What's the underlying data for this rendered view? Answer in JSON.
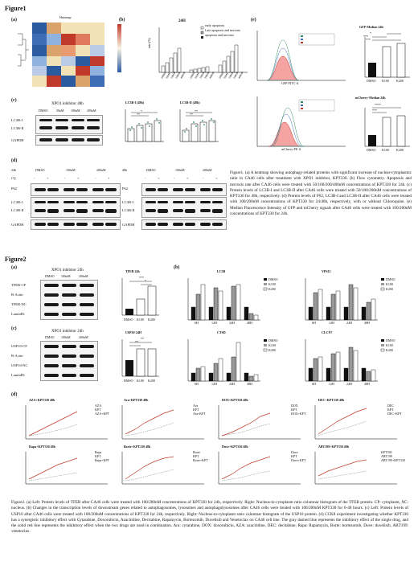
{
  "figure1": {
    "title": "Figure1",
    "panel_a": {
      "letter": "(a)",
      "heatmap_title": "Heatmap"
    },
    "panel_b": {
      "letter": "(b)",
      "chart_title": "24H",
      "ylabel": "rate (%)",
      "legend": [
        "early apoptosis",
        "Late apoptosis and necrosis",
        "apoptosis and necrosis"
      ]
    },
    "panel_c": {
      "letter": "(c)",
      "blot_title": "XPO1 inhibitor 48h",
      "lanes": [
        "DMSO",
        "50nM",
        "100nM",
        "200nM"
      ],
      "rows": [
        "LC3B-I",
        "LC3B-II",
        "GAPDH"
      ],
      "bar1_title": "LC3B-I (48h)",
      "bar2_title": "LC3B-II (48h)",
      "ylabel": "relative expression",
      "sig": [
        "*",
        "**",
        "**",
        "**"
      ]
    },
    "panel_d": {
      "letter": "(d)",
      "left": {
        "time": "24h",
        "groups": [
          "DMSO",
          "100nM",
          "200nM"
        ],
        "cq_label": "CQ",
        "cq": [
          "-",
          "+",
          "-",
          "+",
          "-",
          "+"
        ],
        "rows": [
          "P62",
          "LC3B-I",
          "LC3B-II",
          "GAPDH"
        ]
      },
      "right": {
        "time": "48h",
        "groups": [
          "DMSO",
          "100nM",
          "200nM"
        ],
        "cq": [
          "-",
          "+",
          "-",
          "+",
          "-",
          "+"
        ],
        "rows": [
          "P62",
          "LC3B-I",
          "LC3B-II",
          "GAPDH"
        ]
      }
    },
    "panel_e": {
      "letter": "(e)",
      "gfp_title": "GFP-Median 24h",
      "gfp_xlabel": "GFP-FITC-A",
      "mcherry_title": "mCherry-Median 24h",
      "mcherry_xlabel": "mCherry-PE-A",
      "ylabel": "Median Fluorescence Intensity",
      "groups": [
        "DMSO",
        "K100",
        "K200"
      ],
      "sig_gfp": [
        "***",
        "***",
        "*"
      ],
      "sig_mch": [
        "****",
        "***"
      ]
    },
    "caption": "Figure1. (a) A heatmap showing autophagy-related proteins with significant increase of nuclear-cytoplasmic ratio in CA46 cells after treatment with XPO1 inhibitor, KPT330. (b) Flow cytometry. Apoptosis and necrosis rate after CA46 cells were treated with 50/100/200/400nM concentrations of KPT330 for 24h. (c) Protein levels of LC3B-I and LC3B-II after CA46 cells were treated with 50/100/200nM concentrations of KPT330 for 48h, respectively. (d) Protein levels of P62, LC3B-I and LC3B-II after CA46 cells were treated with 100/200nM concentrations of KPT330 for 24/48h, respectively, with or without Chloroquine. (e) Median Fluorescence Intensity of GFP and mCherry signals after CA46 cells were treated with 100/200nM concentrations of KPT330 for 24h."
  },
  "figure2": {
    "title": "Figure2",
    "panel_a": {
      "letter": "(a)",
      "blot_title": "XPO1 inhibitor 24h",
      "lanes": [
        "DMSO",
        "100nM",
        "200nM"
      ],
      "rows": [
        "TFEB-CP",
        "B-Actin",
        "TFEB-NC",
        "LaminB1"
      ],
      "chart_title": "TFEB 24h",
      "ylabel": "relative expression (TFEB-NC/TFEB-CP)",
      "groups": [
        "DMSO",
        "K100",
        "K200"
      ],
      "sig": [
        "***",
        "*"
      ]
    },
    "panel_c": {
      "letter": "(c)",
      "blot_title": "XPO1 inhibitor 24h",
      "lanes": [
        "DMSO",
        "100nM",
        "200nM"
      ],
      "rows": [
        "USP10-CP",
        "B-Actin",
        "USP10-NC",
        "LaminB1"
      ],
      "chart_title": "USP10-24H",
      "ylabel": "relative expression",
      "groups": [
        "DMSO",
        "K100",
        "K200"
      ],
      "sig": [
        "**",
        "**"
      ]
    },
    "panel_b": {
      "letter": "(b)",
      "charts": [
        {
          "title": "LC3B",
          "legend": [
            "DMSO",
            "K100",
            "K200"
          ]
        },
        {
          "title": "VPS11",
          "legend": [
            "DMSO",
            "K100",
            "K200"
          ]
        },
        {
          "title": "CTSD",
          "legend": [
            "DMSO",
            "K100",
            "K200"
          ]
        },
        {
          "title": "CLCN7",
          "legend": [
            "DMSO",
            "K100",
            "K200"
          ]
        }
      ],
      "times": [
        "6H",
        "12H",
        "24H",
        "48H"
      ],
      "ylabel": "relative expression"
    },
    "panel_d": {
      "letter": "(d)",
      "charts": [
        {
          "title": "AZA+KPT330 48h",
          "legend": [
            "AZA",
            "KPT",
            "AZA+KPT"
          ]
        },
        {
          "title": "Ara+KPT330 48h",
          "legend": [
            "Ara",
            "KPT",
            "Ara+KPT"
          ]
        },
        {
          "title": "DOX+KPT330 48h",
          "legend": [
            "DOX",
            "KPT",
            "DOX+KPT"
          ]
        },
        {
          "title": "DEC+KPT330 48h",
          "legend": [
            "DEC",
            "KPT",
            "DEC+KPT"
          ]
        },
        {
          "title": "Rapa+KPT330 48h",
          "legend": [
            "Rapa",
            "KPT",
            "Rapa+KPT"
          ]
        },
        {
          "title": "Borte+KPT330 48h",
          "legend": [
            "Borte",
            "KPT",
            "Borte+KPT"
          ]
        },
        {
          "title": "Duve+KPT330 48h",
          "legend": [
            "Duve",
            "KPT",
            "Duve+KPT"
          ]
        },
        {
          "title": "ABT199+KPT330 48h",
          "legend": [
            "KPT330",
            "ABT199",
            "ABT199+KPT330"
          ]
        }
      ],
      "ylabel": "inhibition rate"
    },
    "caption": "Figure2. (a) Left: Protein levels of TFEB after CA46 cells were treated with 100/200nM concentrations of KPT330 for 24h, respectively. Right: Nucleus-to-cytoplasm ratio columnar histogram of the TFEB protein. CP: cytoplasm, NC: nucleus. (b) Changes in the transcription levels of downstream genes related to autophagosomes, lysosomes and autophagolysosomes after CA46 cells were treated with 100/200nM KPT330 for 6-48 hours. (c) Left: Protein levels of USP10 after CA46 cells were treated with 100/200nM concentrations of KPT330 for 24h, respectively. Right: Nucleus-to-cytoplasm ratio columnar histogram of the USP10 protein. (d) CCK8 experiment investigating whether KPT330 has a synergistic inhibitory effect with Cytarabine, Doxorubicin, Azacitidine, Decitabine, Rapamycin, Bortezomib, Duvelisib and Venetoclax on CA46 cell line. The gray dashed line represents the inhibitory effect of the single drug, and the solid red line represents the inhibitory effect when the two drugs are used in combination. Ara: cytarabine, DOX: doxorubicin, AZA: azacitidine, DEC: decitabine, Rapa: Rapamycin, Borte: bortezomib, Duve: duvelisib, ABT199: venetoclax."
  },
  "colors": {
    "heat_high": "#c0392b",
    "heat_low": "#2c5aa0",
    "bar": "#111111",
    "line_red": "#c0392b",
    "green_dots": "#2e8b57"
  }
}
